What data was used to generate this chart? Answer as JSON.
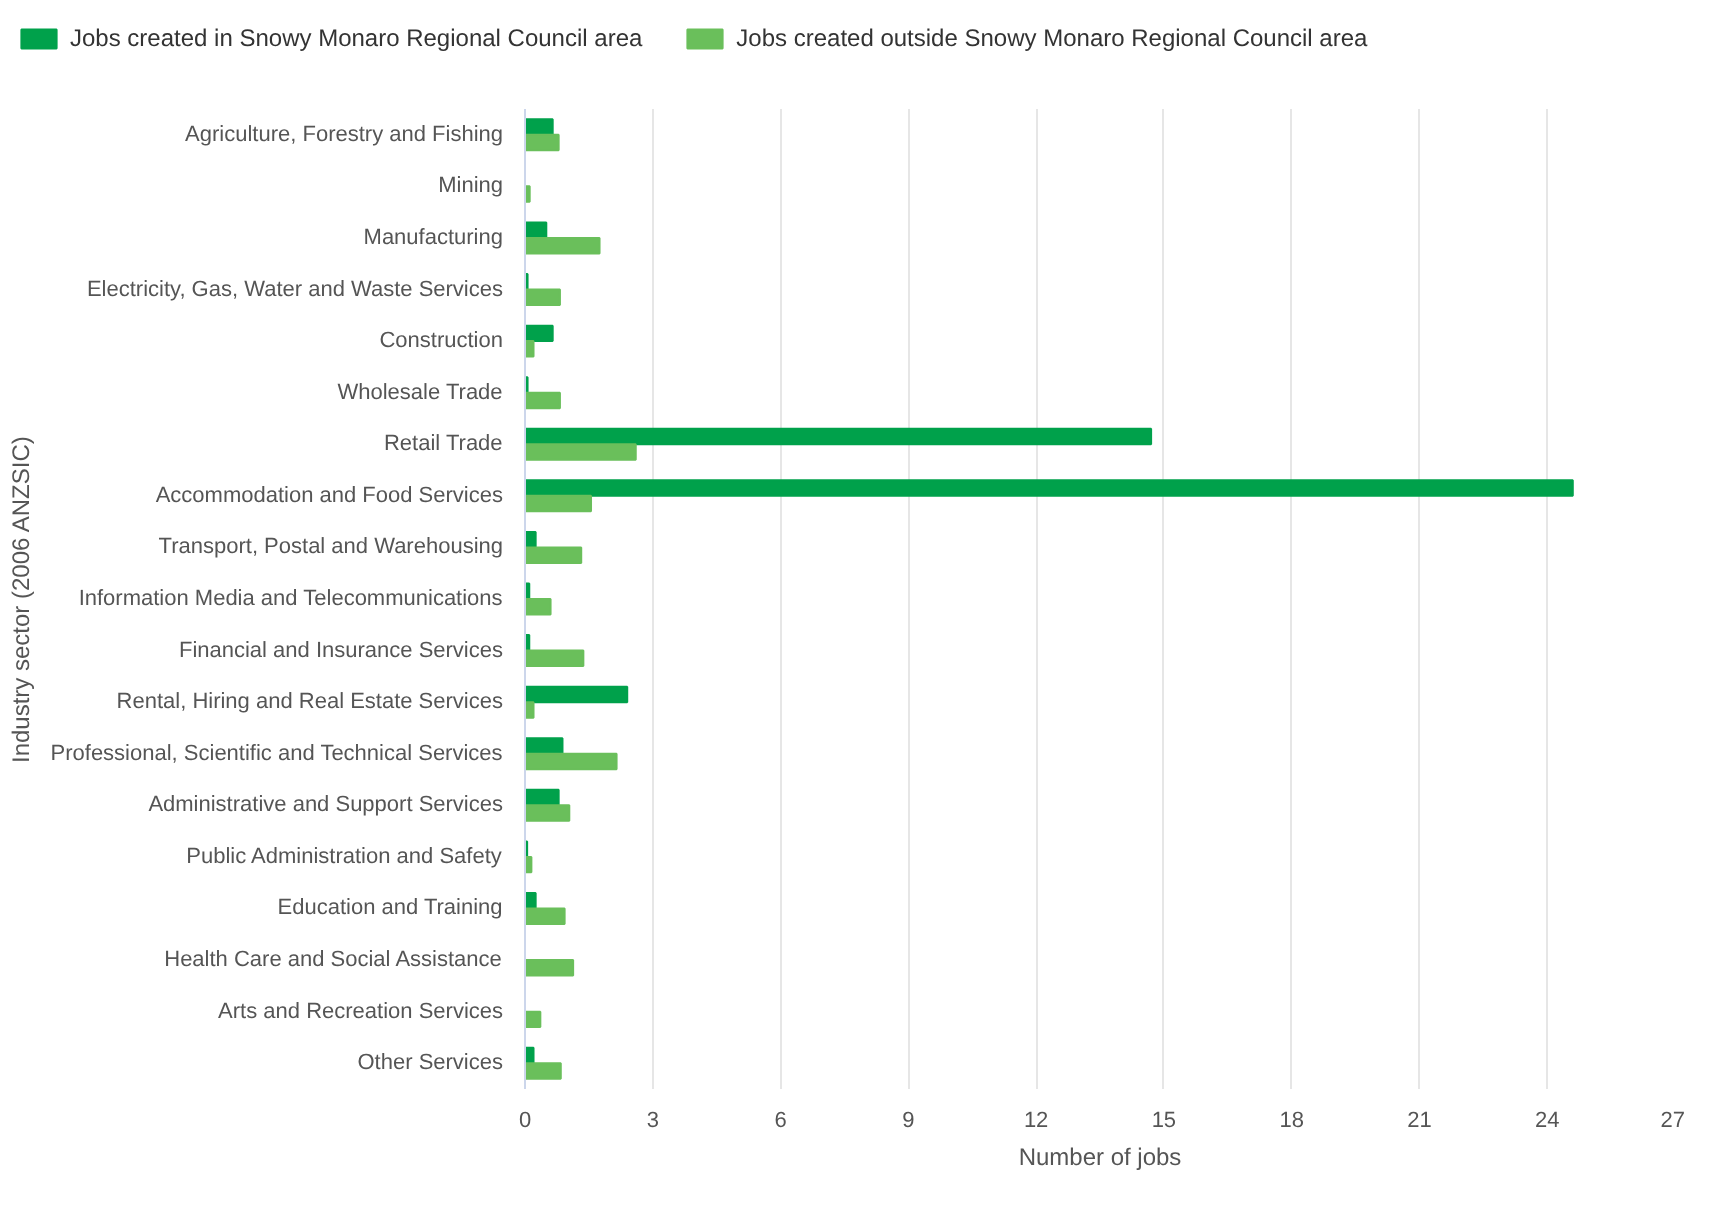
{
  "chart_data": {
    "type": "bar",
    "orientation": "horizontal",
    "xlabel": "Number of jobs",
    "ylabel": "Industry sector (2006 ANZSIC)",
    "categories": [
      "Agriculture, Forestry and Fishing",
      "Mining",
      "Manufacturing",
      "Electricity, Gas, Water and Waste Services",
      "Construction",
      "Wholesale Trade",
      "Retail Trade",
      "Accommodation and Food Services",
      "Transport, Postal and Warehousing",
      "Information Media and Telecommunications",
      "Financial and Insurance Services",
      "Rental, Hiring and Real Estate Services",
      "Professional, Scientific and Technical Services",
      "Administrative and Support Services",
      "Public Administration and Safety",
      "Education and Training",
      "Health Care and Social Assistance",
      "Arts and Recreation Services",
      "Other Services"
    ],
    "series": [
      {
        "name": "Jobs created in Snowy Monaro Regional Council area",
        "color": "#00a14b",
        "values": [
          0.65,
          0,
          0.5,
          0.06,
          0.65,
          0.06,
          14.7,
          24.6,
          0.25,
          0.1,
          0.1,
          2.4,
          0.88,
          0.79,
          0.05,
          0.25,
          0,
          0,
          0.2
        ]
      },
      {
        "name": "Jobs created outside Snowy Monaro Regional Council area",
        "color": "#6abf5b",
        "values": [
          0.79,
          0.11,
          1.75,
          0.82,
          0.2,
          0.82,
          2.6,
          1.55,
          1.32,
          0.6,
          1.37,
          0.2,
          2.15,
          1.04,
          0.15,
          0.93,
          1.13,
          0.36,
          0.84
        ]
      }
    ],
    "xlim": [
      0,
      27
    ],
    "xticks": [
      0,
      3,
      6,
      9,
      12,
      15,
      18,
      21,
      24,
      27
    ],
    "grid": "x",
    "legend": "top"
  }
}
